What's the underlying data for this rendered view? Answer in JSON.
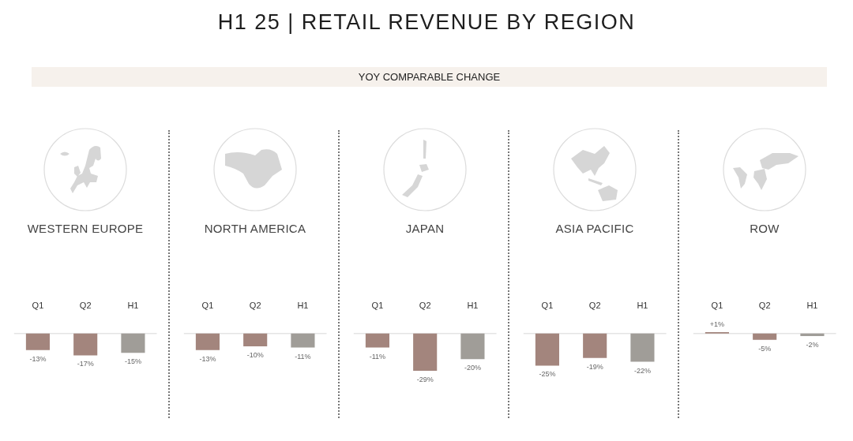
{
  "chart_data": [
    {
      "type": "other",
      "title": "H1 25 | RETAIL REVENUE BY REGION",
      "subtitle": "YOY COMPARABLE CHANGE"
    },
    {
      "type": "bar",
      "title": "WESTERN EUROPE",
      "categories": [
        "Q1",
        "Q2",
        "H1"
      ],
      "values": [
        -13,
        -17,
        -15
      ],
      "colors": [
        "#a3857d",
        "#a3857d",
        "#a09d98"
      ],
      "value_labels": [
        "-13%",
        "-17%",
        "-15%"
      ],
      "tick_labels": "x"
    },
    {
      "type": "bar",
      "title": "NORTH AMERICA",
      "categories": [
        "Q1",
        "Q2",
        "H1"
      ],
      "values": [
        -13,
        -10,
        -11
      ],
      "colors": [
        "#a3857d",
        "#a3857d",
        "#a09d98"
      ],
      "value_labels": [
        "-13%",
        "-10%",
        "-11%"
      ],
      "tick_labels": "x"
    },
    {
      "type": "bar",
      "title": "JAPAN",
      "categories": [
        "Q1",
        "Q2",
        "H1"
      ],
      "values": [
        -11,
        -29,
        -20
      ],
      "colors": [
        "#a3857d",
        "#a3857d",
        "#a09d98"
      ],
      "value_labels": [
        "-11%",
        "-29%",
        "-20%"
      ],
      "tick_labels": "x"
    },
    {
      "type": "bar",
      "title": "ASIA PACIFIC",
      "categories": [
        "Q1",
        "Q2",
        "H1"
      ],
      "values": [
        -25,
        -19,
        -22
      ],
      "colors": [
        "#a3857d",
        "#a3857d",
        "#a09d98"
      ],
      "value_labels": [
        "-25%",
        "-19%",
        "-22%"
      ],
      "tick_labels": "x"
    },
    {
      "type": "bar",
      "title": "ROW",
      "categories": [
        "Q1",
        "Q2",
        "H1"
      ],
      "values": [
        1,
        -5,
        -2
      ],
      "colors": [
        "#a3857d",
        "#a3857d",
        "#a09d98"
      ],
      "value_labels": [
        "+1%",
        "-5%",
        "-2%"
      ],
      "tick_labels": "x"
    }
  ]
}
